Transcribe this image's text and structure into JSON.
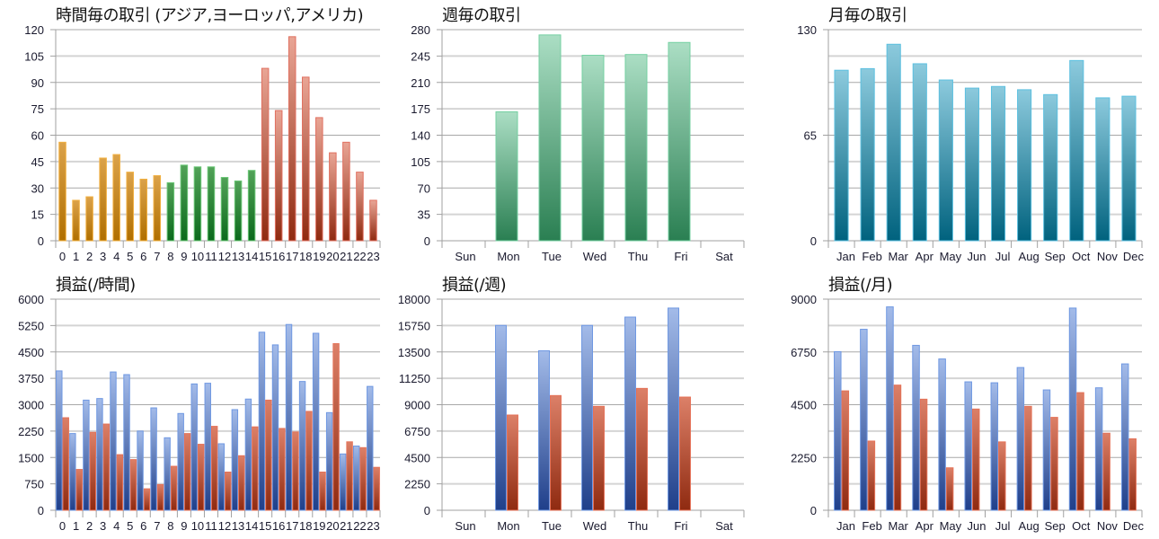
{
  "colors": {
    "asia": [
      "#b06f00",
      "#dba24a",
      "#f2b040"
    ],
    "europe": [
      "#0b6a1c",
      "#52a258",
      "#6cc878"
    ],
    "america": [
      "#8f2a10",
      "#e9a595",
      "#e07060"
    ],
    "week": [
      "#2a7f52",
      "#abdec4",
      "#74d0a2"
    ],
    "month": [
      "#00627e",
      "#8ccadd",
      "#5cc0e0"
    ],
    "blue": [
      "#1f3f8a",
      "#a3bbe9",
      "#6f98e2"
    ],
    "red": [
      "#8f2a10",
      "#dc8068",
      "#e57258"
    ]
  },
  "chart_data": [
    {
      "type": "bar",
      "title": "時間毎の取引 (アジア,ヨーロッパ,アメリカ)",
      "categories": [
        "0",
        "1",
        "2",
        "3",
        "4",
        "5",
        "6",
        "7",
        "8",
        "9",
        "10",
        "11",
        "12",
        "13",
        "14",
        "15",
        "16",
        "17",
        "18",
        "19",
        "20",
        "21",
        "22",
        "23"
      ],
      "values": [
        56,
        23,
        25,
        47,
        49,
        39,
        35,
        37,
        33,
        43,
        42,
        42,
        36,
        34,
        40,
        98,
        74,
        116,
        93,
        70,
        50,
        56,
        39,
        23
      ],
      "color_groups": [
        {
          "from": 0,
          "to": 7,
          "color": "asia"
        },
        {
          "from": 8,
          "to": 14,
          "color": "europe"
        },
        {
          "from": 15,
          "to": 23,
          "color": "america"
        }
      ],
      "ylim": [
        0,
        120
      ],
      "yticks": [
        "0",
        "15",
        "30",
        "45",
        "60",
        "75",
        "90",
        "105",
        "120"
      ],
      "ygrid_step": 15,
      "grid": true
    },
    {
      "type": "bar",
      "title": "週毎の取引",
      "categories": [
        "Sun",
        "Mon",
        "Tue",
        "Wed",
        "Thu",
        "Fri",
        "Sat"
      ],
      "values": [
        0,
        171,
        273,
        246,
        247,
        263,
        0
      ],
      "color": "week",
      "ylim": [
        0,
        280
      ],
      "yticks": [
        "0",
        "35",
        "70",
        "105",
        "140",
        "175",
        "210",
        "245",
        "280"
      ],
      "ygrid_step": 35,
      "grid": true
    },
    {
      "type": "bar",
      "title": "月毎の取引",
      "categories": [
        "Jan",
        "Feb",
        "Mar",
        "Apr",
        "May",
        "Jun",
        "Jul",
        "Aug",
        "Sep",
        "Oct",
        "Nov",
        "Dec"
      ],
      "values": [
        105,
        106,
        121,
        109,
        99,
        94,
        95,
        93,
        90,
        111,
        88,
        89
      ],
      "color": "month",
      "ylim": [
        0,
        130
      ],
      "yticks": [
        "0",
        "65",
        "130"
      ],
      "ygrid_step": 16.25,
      "grid": true
    },
    {
      "type": "bar",
      "title": "損益(/時間)",
      "categories": [
        "0",
        "1",
        "2",
        "3",
        "4",
        "5",
        "6",
        "7",
        "8",
        "9",
        "10",
        "11",
        "12",
        "13",
        "14",
        "15",
        "16",
        "17",
        "18",
        "19",
        "20",
        "21",
        "22",
        "23"
      ],
      "series": [
        {
          "color": "blue",
          "values": [
            3960,
            2180,
            3130,
            3175,
            3930,
            3855,
            2250,
            2910,
            2060,
            2750,
            3590,
            3610,
            1890,
            2860,
            3160,
            5060,
            4700,
            5280,
            3660,
            5030,
            2775,
            1600,
            1825,
            3520
          ]
        },
        {
          "color": "red",
          "values": [
            2630,
            1160,
            2215,
            2450,
            1580,
            1440,
            610,
            730,
            1250,
            2180,
            1875,
            2385,
            1085,
            1550,
            2370,
            3130,
            2325,
            2225,
            2810,
            1085,
            4735,
            1945,
            1780,
            1220
          ]
        }
      ],
      "ylim": [
        0,
        6000
      ],
      "yticks": [
        "0",
        "750",
        "1500",
        "2250",
        "3000",
        "3750",
        "4500",
        "5250",
        "6000"
      ],
      "ygrid_step": 750,
      "grid": true
    },
    {
      "type": "bar",
      "title": "損益(/週)",
      "categories": [
        "Sun",
        "Mon",
        "Tue",
        "Wed",
        "Thu",
        "Fri",
        "Sat"
      ],
      "series": [
        {
          "color": "blue",
          "values": [
            0,
            15760,
            13600,
            15760,
            16470,
            17240,
            0
          ]
        },
        {
          "color": "red",
          "values": [
            0,
            8120,
            9780,
            8860,
            10390,
            9650,
            0
          ]
        }
      ],
      "ylim": [
        0,
        18000
      ],
      "yticks": [
        "0",
        "2250",
        "4500",
        "6750",
        "9000",
        "11250",
        "13500",
        "15750",
        "18000"
      ],
      "ygrid_step": 2250,
      "grid": true
    },
    {
      "type": "bar",
      "title": "損益(/月)",
      "categories": [
        "Jan",
        "Feb",
        "Mar",
        "Apr",
        "May",
        "Jun",
        "Jul",
        "Aug",
        "Sep",
        "Oct",
        "Nov",
        "Dec"
      ],
      "series": [
        {
          "color": "blue",
          "values": [
            6760,
            7715,
            8670,
            7030,
            6450,
            5475,
            5435,
            6085,
            5130,
            8620,
            5220,
            6240
          ]
        },
        {
          "color": "red",
          "values": [
            5090,
            2950,
            5335,
            4735,
            1810,
            4315,
            2915,
            4430,
            3960,
            5015,
            3285,
            3045
          ]
        }
      ],
      "ylim": [
        0,
        9000
      ],
      "yticks": [
        "0",
        "2250",
        "4500",
        "6750",
        "9000"
      ],
      "ygrid_step": 1125,
      "grid": true
    }
  ]
}
